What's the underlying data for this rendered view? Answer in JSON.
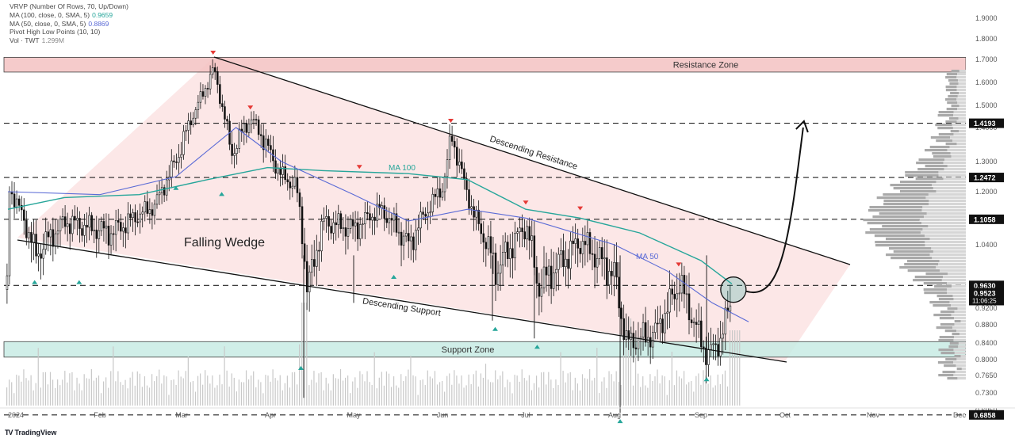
{
  "chart_data": {
    "type": "line",
    "title": "",
    "legend_lines": [
      {
        "label": "VRVP (Number Of Rows, 70, Up/Down)",
        "value": "",
        "color": "#555555"
      },
      {
        "label": "MA (100, close, 0, SMA, 5)",
        "value": "0.9659",
        "color": "#26a69a"
      },
      {
        "label": "MA (50, close, 0, SMA, 5)",
        "value": "0.8869",
        "color": "#5b6bd6"
      },
      {
        "label": "Pivot High Low Points (10, 10)",
        "value": "",
        "color": "#555555"
      },
      {
        "label": "Vol · TWT",
        "value": "1.299M",
        "color": "#888888"
      }
    ],
    "y_ticks": [
      "1.9000",
      "1.8000",
      "1.7000",
      "1.6000",
      "1.5000",
      "1.4000",
      "1.3000",
      "1.2000",
      "1.1000",
      "1.0400",
      "0.9200",
      "0.8800",
      "0.8400",
      "0.8000",
      "0.7650",
      "0.7300",
      "0.6950"
    ],
    "x_ticks": [
      "2024",
      "Feb",
      "Mar",
      "Apr",
      "May",
      "Jun",
      "Jul",
      "Aug",
      "Sep",
      "Oct",
      "Nov",
      "Dec"
    ],
    "ylim": [
      0.6858,
      1.9
    ],
    "price_levels": [
      {
        "label": "1.4193",
        "value": 1.4193
      },
      {
        "label": "1.2472",
        "value": 1.2472
      },
      {
        "label": "1.1058",
        "value": 1.1058
      },
      {
        "label": "0.9630",
        "value": 0.963
      },
      {
        "label": "0.6858",
        "value": 0.6858
      }
    ],
    "last_price": {
      "value": "0.9523",
      "countdown": "11:06:25"
    },
    "zones": [
      {
        "label": "Resistance Zone",
        "low": 1.645,
        "high": 1.71,
        "color": "#f4c3c3"
      },
      {
        "label": "Support Zone",
        "low": 0.806,
        "high": 0.843,
        "color": "#c8ece4"
      }
    ],
    "annotations": {
      "pattern": "Falling Wedge",
      "upper_line": "Descending Resistance",
      "lower_line": "Descending Support",
      "ma100_label": "MA 100",
      "ma50_label": "MA 50"
    },
    "series": [
      {
        "name": "MA 100",
        "color": "#26a69a",
        "points": [
          [
            "Jan 1",
            1.14
          ],
          [
            "Jan 20",
            1.18
          ],
          [
            "Feb 15",
            1.19
          ],
          [
            "Mar 10",
            1.24
          ],
          [
            "Mar 31",
            1.28
          ],
          [
            "Apr 20",
            1.27
          ],
          [
            "May 20",
            1.26
          ],
          [
            "Jun 10",
            1.24
          ],
          [
            "Jul 1",
            1.14
          ],
          [
            "Jul 20",
            1.11
          ],
          [
            "Aug 10",
            1.07
          ],
          [
            "Sep 1",
            1.01
          ],
          [
            "Sep 12",
            0.966
          ]
        ]
      },
      {
        "name": "MA 50",
        "color": "#5b6bd6",
        "points": [
          [
            "Jan 1",
            1.2
          ],
          [
            "Feb 1",
            1.19
          ],
          [
            "Feb 28",
            1.25
          ],
          [
            "Mar 20",
            1.4
          ],
          [
            "Apr 5",
            1.3
          ],
          [
            "May 1",
            1.19
          ],
          [
            "May 20",
            1.1
          ],
          [
            "Jun 10",
            1.14
          ],
          [
            "Jul 1",
            1.11
          ],
          [
            "Aug 1",
            1.04
          ],
          [
            "Aug 20",
            0.99
          ],
          [
            "Sep 5",
            0.93
          ],
          [
            "Sep 18",
            0.887
          ]
        ]
      }
    ],
    "pivots_high": [
      {
        "date": "Mar 12",
        "price": 1.7
      },
      {
        "date": "Mar 25",
        "price": 1.46
      },
      {
        "date": "May 3",
        "price": 1.26
      },
      {
        "date": "Jun 4",
        "price": 1.4
      },
      {
        "date": "Jul 1",
        "price": 1.14
      },
      {
        "date": "Jul 20",
        "price": 1.12
      },
      {
        "date": "Aug 24",
        "price": 0.99
      }
    ],
    "pivots_low": [
      {
        "date": "Jan 10",
        "price": 0.985
      },
      {
        "date": "Jan 25",
        "price": 0.985
      },
      {
        "date": "Feb 28",
        "price": 1.24
      },
      {
        "date": "Mar 15",
        "price": 1.22
      },
      {
        "date": "Apr 12",
        "price": 0.8
      },
      {
        "date": "May 15",
        "price": 0.995
      },
      {
        "date": "Jun 20",
        "price": 0.89
      },
      {
        "date": "Jul 5",
        "price": 0.85
      },
      {
        "date": "Aug 3",
        "price": 0.69
      },
      {
        "date": "Sep 3",
        "price": 0.775
      }
    ],
    "grid": false
  }
}
